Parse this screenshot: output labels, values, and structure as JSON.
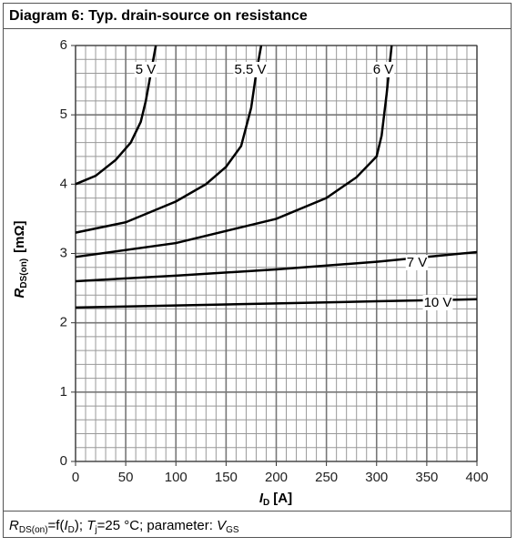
{
  "chart_data": {
    "type": "line",
    "title": "Diagram 6: Typ. drain-source on resistance",
    "ylabel": {
      "symbol": "R",
      "subscript": "DS(on)",
      "unit": "[mΩ]"
    },
    "xlabel": {
      "symbol": "I",
      "subscript": "D",
      "unit": "[A]"
    },
    "caption": [
      "R",
      "DS(on)",
      "=f(",
      "I",
      "D",
      "); ",
      "T",
      "j",
      "=25 °C; parameter: ",
      "V",
      "GS"
    ],
    "xlim": [
      0,
      400
    ],
    "xticks": [
      0,
      50,
      100,
      150,
      200,
      250,
      300,
      350,
      400
    ],
    "ylim": [
      0,
      6
    ],
    "yticks": [
      0,
      1,
      2,
      3,
      4,
      5,
      6
    ],
    "grid": true,
    "series": [
      {
        "name": "5 V",
        "color": "#000000",
        "x": [
          0,
          20,
          40,
          55,
          65,
          70,
          75,
          80
        ],
        "values": [
          4.0,
          4.12,
          4.35,
          4.6,
          4.9,
          5.2,
          5.6,
          6.0
        ]
      },
      {
        "name": "5.5 V",
        "color": "#000000",
        "x": [
          0,
          50,
          100,
          130,
          150,
          165,
          175,
          180,
          185
        ],
        "values": [
          3.3,
          3.45,
          3.75,
          4.0,
          4.25,
          4.55,
          5.1,
          5.6,
          6.0
        ]
      },
      {
        "name": "6 V",
        "color": "#000000",
        "x": [
          0,
          100,
          200,
          250,
          280,
          300,
          305,
          310,
          315
        ],
        "values": [
          2.95,
          3.15,
          3.5,
          3.8,
          4.1,
          4.4,
          4.7,
          5.3,
          6.0
        ]
      },
      {
        "name": "7 V",
        "color": "#000000",
        "x": [
          0,
          100,
          200,
          300,
          400
        ],
        "values": [
          2.6,
          2.68,
          2.77,
          2.88,
          3.02
        ]
      },
      {
        "name": "10 V",
        "color": "#000000",
        "x": [
          0,
          100,
          200,
          300,
          400
        ],
        "values": [
          2.22,
          2.25,
          2.28,
          2.31,
          2.34
        ]
      }
    ]
  }
}
